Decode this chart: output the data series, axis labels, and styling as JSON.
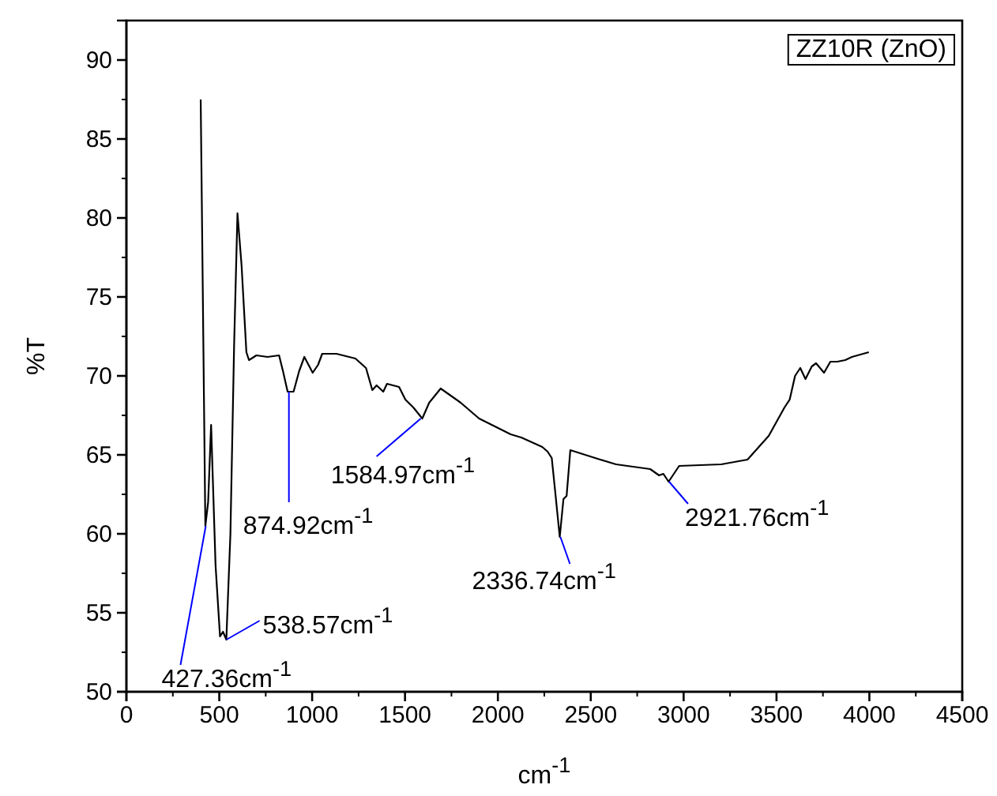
{
  "chart_data": {
    "type": "line",
    "xlabel": "cm$^{-1}$",
    "ylabel": "%T",
    "xlim": [
      0,
      4500
    ],
    "xticks": [
      0,
      500,
      1000,
      1500,
      2000,
      2500,
      3000,
      3500,
      4000,
      4500
    ],
    "ylim": [
      50,
      92.5
    ],
    "yticks": [
      50,
      55,
      60,
      65,
      70,
      75,
      80,
      85,
      90
    ],
    "series": [
      {
        "color": "#000000",
        "x": [
          400,
          425,
          440,
          456,
          480,
          504,
          520,
          538,
          560,
          580,
          598,
          620,
          646,
          660,
          700,
          760,
          822,
          845,
          868,
          900,
          930,
          958,
          1003,
          1032,
          1054,
          1131,
          1233,
          1290,
          1324,
          1347,
          1383,
          1403,
          1468,
          1502,
          1545,
          1593,
          1630,
          1692,
          1800,
          1899,
          2069,
          2126,
          2239,
          2268,
          2290,
          2310,
          2333,
          2353,
          2370,
          2390,
          2551,
          2636,
          2820,
          2868,
          2891,
          2919,
          2976,
          3203,
          3344,
          3458,
          3543,
          3571,
          3600,
          3628,
          3656,
          3690,
          3713,
          3756,
          3790,
          3827,
          3870,
          3906,
          3997
        ],
        "values": [
          87.5,
          60.5,
          62,
          66.9,
          58,
          53.5,
          53.8,
          53.3,
          60,
          72,
          80.3,
          77,
          71.5,
          71,
          71.3,
          71.2,
          71.3,
          70.2,
          69,
          69,
          70.3,
          71.2,
          70.2,
          70.7,
          71.4,
          71.4,
          71.1,
          70.5,
          69.1,
          69.4,
          69,
          69.5,
          69.3,
          68.5,
          68,
          67.3,
          68.3,
          69.2,
          68.3,
          67.3,
          66.3,
          66.1,
          65.5,
          65.2,
          64.8,
          62.5,
          59.8,
          62.2,
          62.4,
          65.3,
          64.7,
          64.4,
          64.1,
          63.7,
          63.8,
          63.3,
          64.3,
          64.4,
          64.7,
          66.2,
          68,
          68.5,
          70,
          70.5,
          69.8,
          70.6,
          70.8,
          70.2,
          70.9,
          70.9,
          71,
          71.2,
          71.5
        ]
      }
    ],
    "annotations": [
      {
        "text": "427.36cm$^{-1}$",
        "x": 427.36,
        "y": 60.5
      },
      {
        "text": "538.57cm$^{-1}$",
        "x": 538.57,
        "y": 53.3
      },
      {
        "text": "874.92cm$^{-1}$",
        "x": 874.92,
        "y": 69
      },
      {
        "text": "1584.97cm$^{-1}$",
        "x": 1584.97,
        "y": 67.3
      },
      {
        "text": "2336.74cm$^{-1}$",
        "x": 2336.74,
        "y": 59.8
      },
      {
        "text": "2921.76cm$^{-1}$",
        "x": 2921.76,
        "y": 63.3
      },
      "ZZ10R (ZnO)"
    ]
  }
}
